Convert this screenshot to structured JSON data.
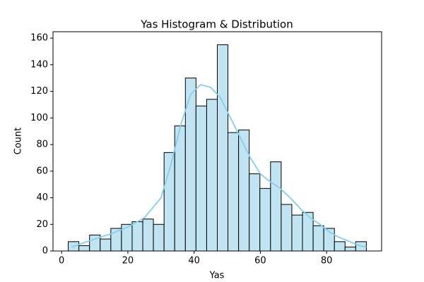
{
  "chart_data": {
    "type": "histogram",
    "title": "Yas Histogram & Distribution",
    "xlabel": "Yas",
    "ylabel": "Count",
    "bins": [
      2,
      5.21,
      8.43,
      11.64,
      14.86,
      18.07,
      21.29,
      24.5,
      27.71,
      30.93,
      34.14,
      37.36,
      40.57,
      43.79,
      47,
      50.21,
      53.43,
      56.64,
      59.86,
      63.07,
      66.29,
      69.5,
      72.71,
      75.93,
      79.14,
      82.36,
      85.57,
      88.79,
      92
    ],
    "counts": [
      7,
      4,
      12,
      9,
      17,
      20,
      22,
      24,
      20,
      74,
      94,
      130,
      109,
      114,
      155,
      89,
      91,
      58,
      47,
      67,
      35,
      27,
      29,
      19,
      17,
      7,
      3,
      7
    ],
    "color": "#c0e4f1",
    "edgecolor": "#000000",
    "kde": {
      "x": [
        3,
        10,
        15,
        20,
        25,
        30,
        33,
        36,
        39,
        42,
        45,
        48,
        51,
        54,
        57,
        60,
        63,
        66,
        69,
        72,
        75,
        78,
        81,
        84,
        87,
        90,
        92
      ],
      "values": [
        3,
        9,
        13,
        18,
        25,
        40,
        65,
        95,
        118,
        125,
        123,
        115,
        100,
        85,
        70,
        58,
        52,
        47,
        40,
        32,
        25,
        20,
        14,
        10,
        7,
        4,
        3
      ],
      "color": "#87ceeb"
    },
    "xlim": [
      -2.6,
      96.6
    ],
    "ylim": [
      0,
      164.8
    ],
    "xticks": [
      0,
      20,
      40,
      60,
      80
    ],
    "yticks": [
      0,
      20,
      40,
      60,
      80,
      100,
      120,
      140,
      160
    ]
  }
}
